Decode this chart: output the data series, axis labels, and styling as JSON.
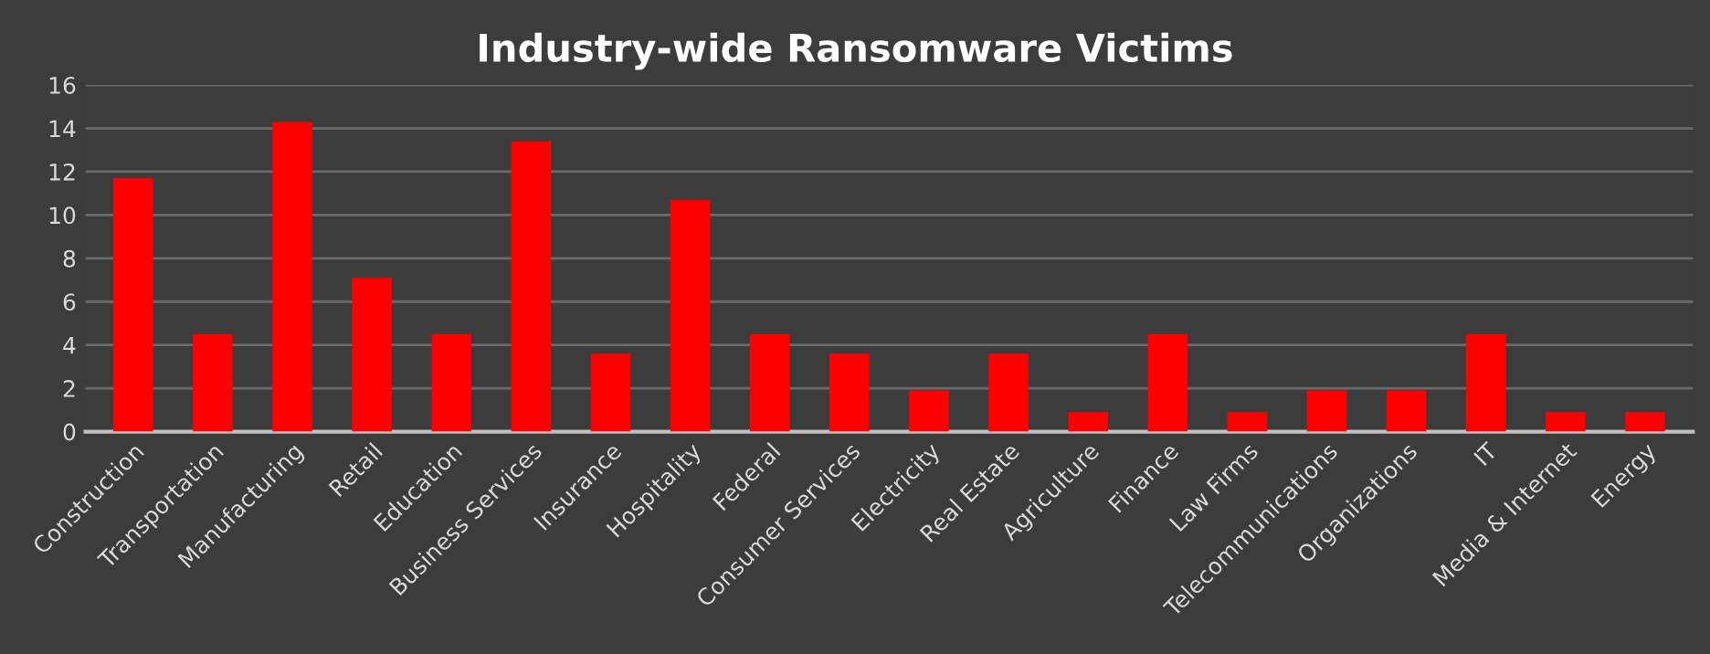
{
  "chart_data": {
    "type": "bar",
    "title": "Industry-wide Ransomware Victims",
    "categories": [
      "Construction",
      "Transportation",
      "Manufacturing",
      "Retail",
      "Education",
      "Business Services",
      "Insurance",
      "Hospitality",
      "Federal",
      "Consumer Services",
      "Electricity",
      "Real Estate",
      "Agriculture",
      "Finance",
      "Law Firms",
      "Telecommunications",
      "Organizations",
      "IT",
      "Media & Internet",
      "Energy"
    ],
    "values": [
      11.7,
      4.5,
      14.3,
      7.1,
      4.5,
      13.4,
      3.6,
      10.7,
      4.5,
      3.6,
      1.9,
      3.6,
      0.9,
      4.5,
      0.9,
      1.9,
      1.9,
      4.5,
      0.9,
      0.9
    ],
    "color": "#ff0000",
    "ylim": [
      0,
      16
    ],
    "yticks": [
      0,
      2,
      4,
      6,
      8,
      10,
      12,
      14,
      16
    ],
    "grid": "y"
  }
}
